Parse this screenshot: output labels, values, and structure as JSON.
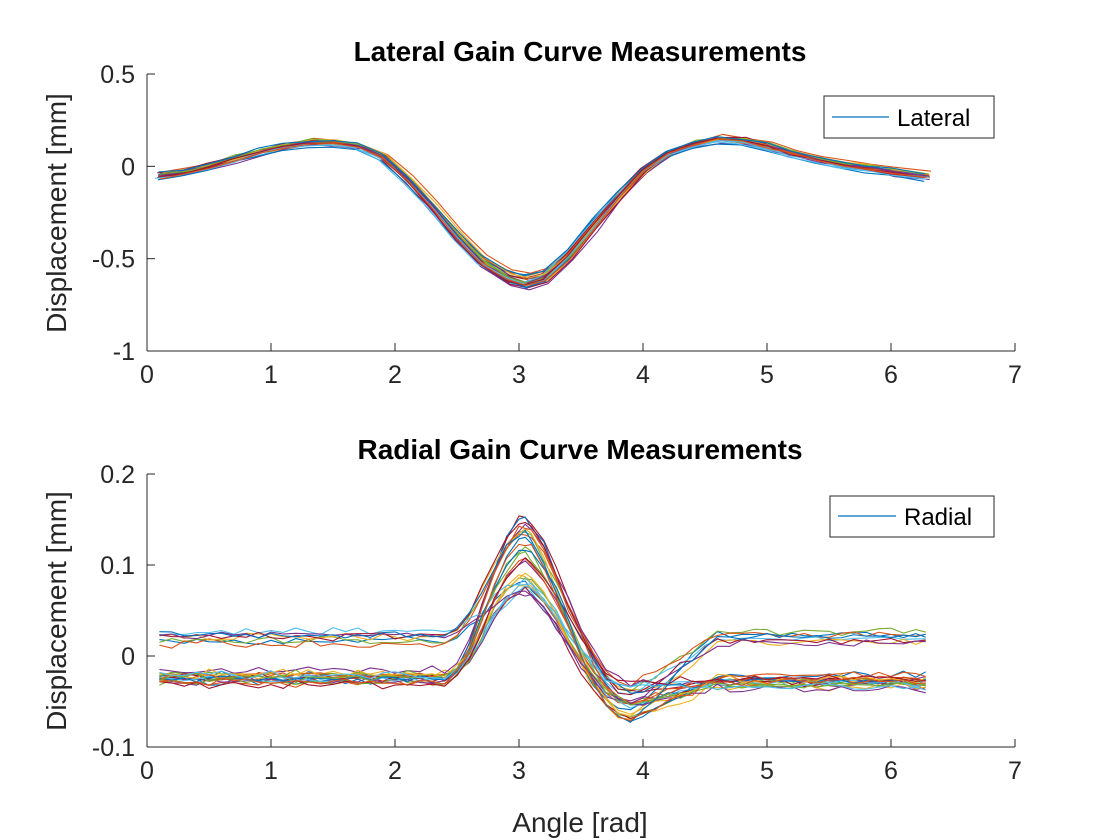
{
  "chart_data": [
    {
      "type": "line",
      "title": "Lateral Gain Curve Measurements",
      "xlabel": "",
      "ylabel": "Displacement [mm]",
      "xlim": [
        0,
        7
      ],
      "ylim": [
        -1,
        0.5
      ],
      "xticks": [
        "0",
        "1",
        "2",
        "3",
        "4",
        "5",
        "6",
        "7"
      ],
      "yticks": [
        "0.5",
        "0",
        "-0.5",
        "-1"
      ],
      "legend": {
        "label": "Lateral",
        "placement": "top-right"
      },
      "num_traces": 30,
      "x": [
        0.1,
        0.3,
        0.5,
        0.7,
        0.9,
        1.1,
        1.3,
        1.5,
        1.7,
        1.9,
        2.1,
        2.3,
        2.5,
        2.7,
        2.9,
        3.05,
        3.2,
        3.4,
        3.6,
        3.8,
        4.0,
        4.2,
        4.4,
        4.6,
        4.8,
        5.0,
        5.2,
        5.4,
        5.6,
        5.8,
        6.0,
        6.28
      ],
      "mean": [
        -0.05,
        -0.03,
        0.0,
        0.04,
        0.08,
        0.11,
        0.13,
        0.13,
        0.11,
        0.05,
        -0.07,
        -0.22,
        -0.38,
        -0.52,
        -0.6,
        -0.63,
        -0.6,
        -0.48,
        -0.32,
        -0.16,
        -0.02,
        0.07,
        0.12,
        0.15,
        0.14,
        0.11,
        0.07,
        0.04,
        0.01,
        -0.01,
        -0.03,
        -0.05
      ],
      "spread": 0.05
    },
    {
      "type": "line",
      "title": "Radial Gain Curve Measurements",
      "xlabel": "Angle [rad]",
      "ylabel": "Displacement [mm]",
      "xlim": [
        0,
        7
      ],
      "ylim": [
        -0.1,
        0.2
      ],
      "xticks": [
        "0",
        "1",
        "2",
        "3",
        "4",
        "5",
        "6",
        "7"
      ],
      "yticks": [
        "0.2",
        "0.1",
        "0",
        "-0.1"
      ],
      "legend": {
        "label": "Radial",
        "placement": "top-right"
      },
      "num_traces": 30,
      "x": [
        0.1,
        0.2,
        0.3,
        0.4,
        0.5,
        0.6,
        0.7,
        0.8,
        0.9,
        1.0,
        1.1,
        1.2,
        1.3,
        1.4,
        1.5,
        1.6,
        1.7,
        1.8,
        1.9,
        2.0,
        2.1,
        2.2,
        2.3,
        2.4,
        2.5,
        2.6,
        2.7,
        2.8,
        2.9,
        3.0,
        3.05,
        3.1,
        3.2,
        3.3,
        3.4,
        3.5,
        3.6,
        3.7,
        3.8,
        3.9,
        4.0,
        4.1,
        4.2,
        4.3,
        4.4,
        4.5,
        4.6,
        4.7,
        4.8,
        4.9,
        5.0,
        5.1,
        5.2,
        5.3,
        5.4,
        5.5,
        5.6,
        5.7,
        5.8,
        5.9,
        6.0,
        6.1,
        6.2,
        6.28
      ],
      "baseline_left": [
        -0.04,
        -0.02,
        0.0,
        0.02,
        0.03
      ],
      "baseline_right": [
        -0.05,
        -0.03,
        -0.02,
        0.0,
        0.02
      ],
      "peak": {
        "x": 3.05,
        "min": 0.065,
        "max": 0.168
      },
      "trough": {
        "x": 3.9,
        "min": -0.072,
        "max": -0.03
      }
    }
  ]
}
